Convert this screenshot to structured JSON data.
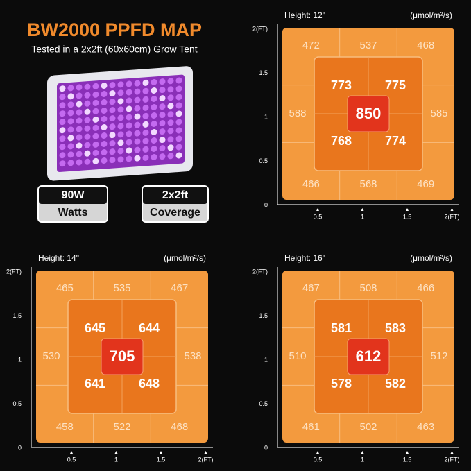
{
  "header": {
    "title": "BW2000 PPFD MAP",
    "subtitle": "Tested in a 2x2ft (60x60cm) Grow Tent"
  },
  "badges": [
    {
      "value": "90W",
      "label": "Watts"
    },
    {
      "value": "2x2ft",
      "label": "Coverage"
    }
  ],
  "maps": [
    {
      "height": "Height: 12\"",
      "unit": "(μmol/m²/s)",
      "y_ticks": [
        "2(FT)",
        "1.5",
        "1",
        "0.5",
        "0"
      ],
      "x_ticks": [
        "0.5",
        "1",
        "1.5",
        "2(FT)"
      ],
      "outer": [
        472,
        537,
        468,
        588,
        585,
        466,
        568,
        469
      ],
      "inner": [
        773,
        775,
        768,
        774
      ],
      "center": 850
    },
    {
      "height": "Height: 14\"",
      "unit": "(μmol/m²/s)",
      "y_ticks": [
        "2(FT)",
        "1.5",
        "1",
        "0.5",
        "0"
      ],
      "x_ticks": [
        "0.5",
        "1",
        "1.5",
        "2(FT)"
      ],
      "outer": [
        465,
        535,
        467,
        530,
        538,
        458,
        522,
        468
      ],
      "inner": [
        645,
        644,
        641,
        648
      ],
      "center": 705
    },
    {
      "height": "Height: 16\"",
      "unit": "(μmol/m²/s)",
      "y_ticks": [
        "2(FT)",
        "1.5",
        "1",
        "0.5",
        "0"
      ],
      "x_ticks": [
        "0.5",
        "1",
        "1.5",
        "2(FT)"
      ],
      "outer": [
        467,
        508,
        466,
        510,
        512,
        461,
        502,
        463
      ],
      "inner": [
        581,
        583,
        578,
        582
      ],
      "center": 612
    }
  ]
}
